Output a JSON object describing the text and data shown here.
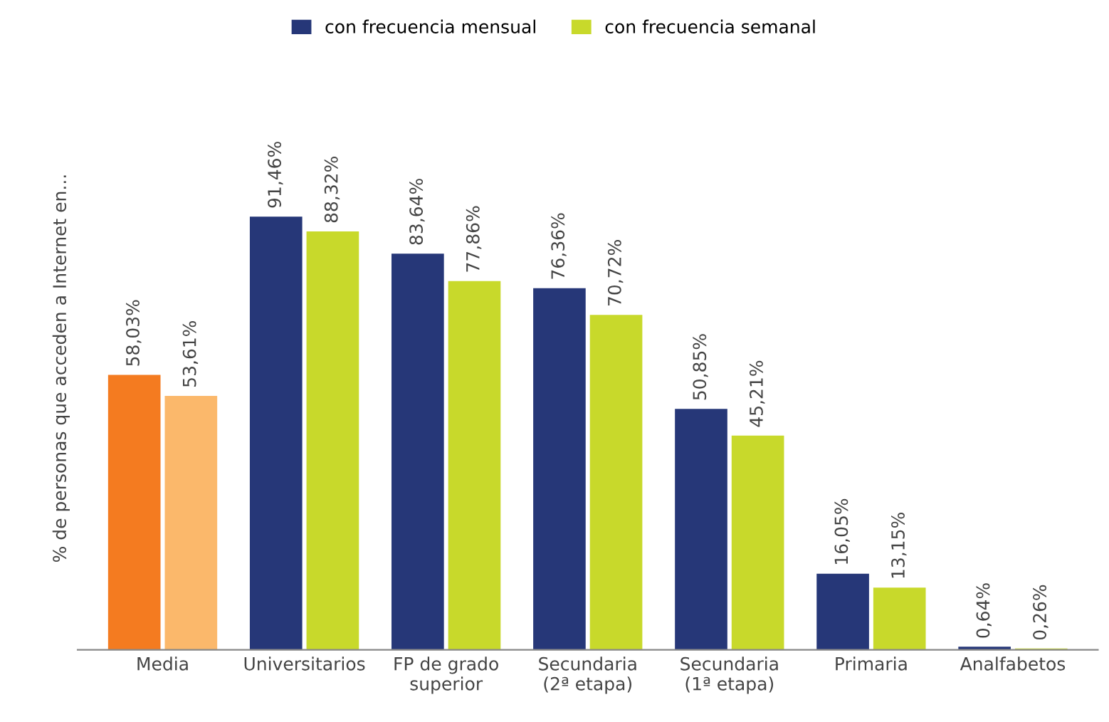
{
  "chart_data": {
    "type": "bar",
    "ylabel": "% de personas que acceden a Internet en...",
    "categories": [
      "Media",
      "Universitarios",
      "FP de grado\nsuperior",
      "Secundaria\n(2ª etapa)",
      "Secundaria\n(1ª etapa)",
      "Primaria",
      "Analfabetos"
    ],
    "series": [
      {
        "name": "con frecuencia mensual",
        "color": "#263778",
        "colors": [
          "#f47b20",
          "#263778",
          "#263778",
          "#263778",
          "#263778",
          "#263778",
          "#263778"
        ],
        "values": [
          58.03,
          91.46,
          83.64,
          76.36,
          50.85,
          16.05,
          0.64
        ],
        "value_labels": [
          "58,03%",
          "91,46%",
          "83,64%",
          "76,36%",
          "50,85%",
          "16,05%",
          "0,64%"
        ]
      },
      {
        "name": "con frecuencia semanal",
        "color": "#c8d92b",
        "colors": [
          "#fbb86b",
          "#c8d92b",
          "#c8d92b",
          "#c8d92b",
          "#c8d92b",
          "#c8d92b",
          "#c8d92b"
        ],
        "values": [
          53.61,
          88.32,
          77.86,
          70.72,
          45.21,
          13.15,
          0.26
        ],
        "value_labels": [
          "53,61%",
          "88,32%",
          "77,86%",
          "70,72%",
          "45,21%",
          "13,15%",
          "0,26%"
        ]
      }
    ],
    "legend": "top",
    "grid": false
  }
}
